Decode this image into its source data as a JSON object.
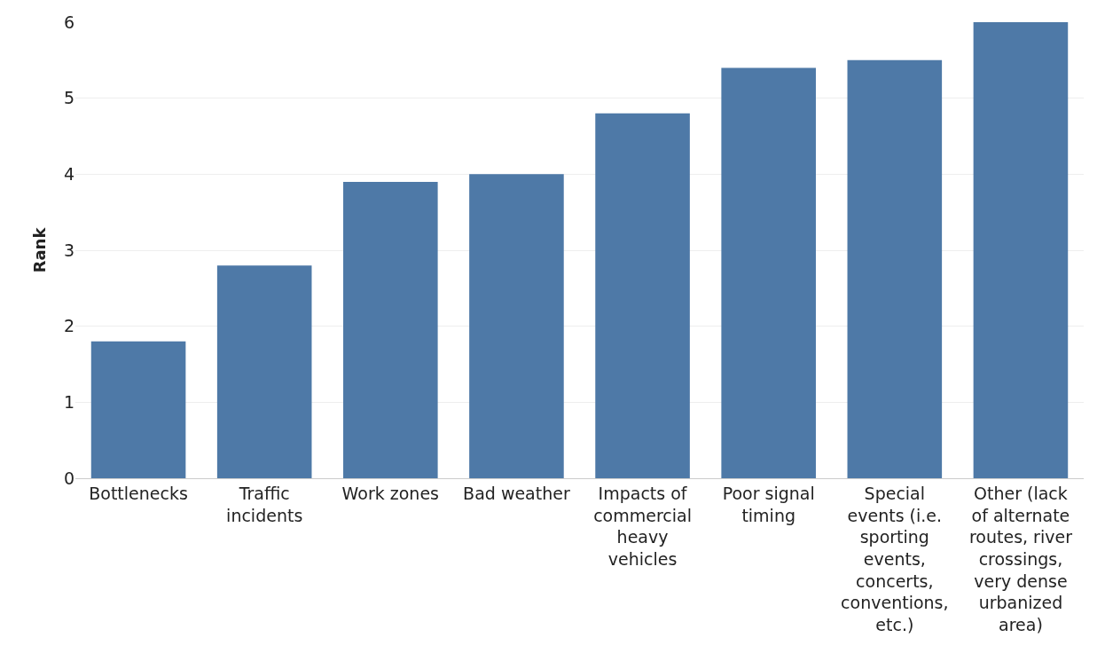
{
  "chart_data": {
    "type": "bar",
    "ylabel": "Rank",
    "categories": [
      "Bottlenecks",
      "Traffic incidents",
      "Work zones",
      "Bad weather",
      "Impacts of commercial heavy vehicles",
      "Poor signal timing",
      "Special events (i.e. sporting events, concerts, conventions, etc.)",
      "Other (lack of alternate routes, river crossings, very dense urbanized area)"
    ],
    "values": [
      1.8,
      2.8,
      3.9,
      4.0,
      4.8,
      5.4,
      5.5,
      6.0
    ],
    "color": "#4e79a7",
    "ylim": [
      0,
      6
    ],
    "yticks": [
      0,
      1,
      2,
      3,
      4,
      5,
      6
    ],
    "grid": "y"
  }
}
